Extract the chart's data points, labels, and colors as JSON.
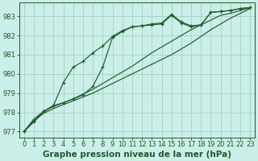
{
  "bg_color": "#cceee8",
  "grid_color": "#aad4c8",
  "line_color": "#1a5c2a",
  "xlabel": "Graphe pression niveau de la mer (hPa)",
  "xlabel_fontsize": 7.5,
  "tick_fontsize": 6,
  "xlim": [
    -0.5,
    23.5
  ],
  "ylim": [
    976.7,
    983.7
  ],
  "yticks": [
    977,
    978,
    979,
    980,
    981,
    982,
    983
  ],
  "xticks": [
    0,
    1,
    2,
    3,
    4,
    5,
    6,
    7,
    8,
    9,
    10,
    11,
    12,
    13,
    14,
    15,
    16,
    17,
    18,
    19,
    20,
    21,
    22,
    23
  ],
  "series": [
    {
      "y": [
        977.0,
        977.55,
        978.05,
        978.35,
        979.55,
        980.35,
        980.65,
        981.1,
        981.45,
        981.95,
        982.25,
        982.45,
        982.5,
        982.6,
        982.65,
        983.1,
        982.7,
        982.5,
        982.55,
        983.2,
        983.25,
        983.3,
        983.4,
        983.45
      ],
      "marker": true
    },
    {
      "y": [
        977.0,
        977.5,
        978.05,
        978.35,
        978.5,
        978.7,
        978.9,
        979.35,
        980.35,
        981.9,
        982.2,
        982.45,
        982.5,
        982.55,
        982.6,
        983.05,
        982.65,
        982.45,
        982.55,
        983.2,
        983.25,
        983.3,
        983.4,
        983.45
      ],
      "marker": true
    },
    {
      "y": [
        977.0,
        977.65,
        978.05,
        978.3,
        978.5,
        978.7,
        978.95,
        979.2,
        979.5,
        979.8,
        980.1,
        980.4,
        980.75,
        981.1,
        981.4,
        981.7,
        982.0,
        982.3,
        982.55,
        982.8,
        983.05,
        983.15,
        983.3,
        983.45
      ],
      "marker": false
    },
    {
      "y": [
        977.0,
        977.55,
        977.95,
        978.2,
        978.4,
        978.6,
        978.8,
        979.0,
        979.25,
        979.5,
        979.75,
        980.0,
        980.25,
        980.5,
        980.75,
        981.0,
        981.3,
        981.6,
        981.95,
        982.3,
        982.6,
        982.9,
        983.15,
        983.4
      ],
      "marker": false
    }
  ]
}
